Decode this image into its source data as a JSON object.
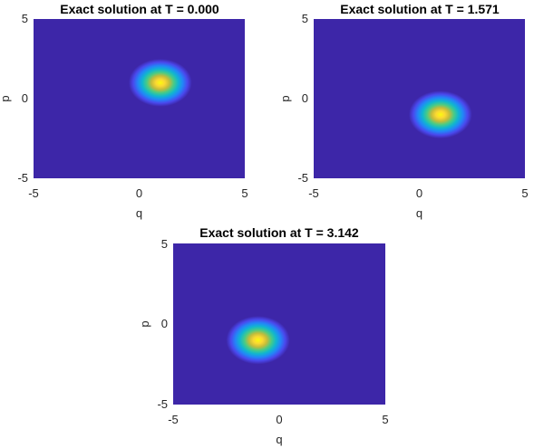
{
  "colors": {
    "background": "#3d26a8",
    "colormap": [
      "#3d26a8",
      "#4a48ed",
      "#2385f8",
      "#10b6cf",
      "#48cb86",
      "#c3bc3b",
      "#fbd832",
      "#f9fb0e"
    ]
  },
  "chart_data": [
    {
      "type": "heatmap",
      "title": "Exact solution at T = 0.000",
      "xlabel": "q",
      "ylabel": "p",
      "xlim": [
        -5,
        5
      ],
      "ylim": [
        -5,
        5
      ],
      "xticks": [
        "-5",
        "0",
        "5"
      ],
      "yticks": [
        "-5",
        "0",
        "5"
      ],
      "peak": {
        "q": 1.0,
        "p": 1.0
      },
      "spread": 0.5
    },
    {
      "type": "heatmap",
      "title": "Exact solution at T = 1.571",
      "xlabel": "q",
      "ylabel": "p",
      "xlim": [
        -5,
        5
      ],
      "ylim": [
        -5,
        5
      ],
      "xticks": [
        "-5",
        "0",
        "5"
      ],
      "yticks": [
        "-5",
        "0",
        "5"
      ],
      "peak": {
        "q": 1.0,
        "p": -1.0
      },
      "spread": 0.5
    },
    {
      "type": "heatmap",
      "title": "Exact solution at T = 3.142",
      "xlabel": "q",
      "ylabel": "p",
      "xlim": [
        -5,
        5
      ],
      "ylim": [
        -5,
        5
      ],
      "xticks": [
        "-5",
        "0",
        "5"
      ],
      "yticks": [
        "-5",
        "0",
        "5"
      ],
      "peak": {
        "q": -1.0,
        "p": -1.0
      },
      "spread": 0.5
    }
  ]
}
